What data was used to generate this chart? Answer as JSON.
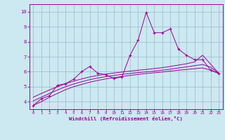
{
  "xlabel": "Windchill (Refroidissement éolien,°C)",
  "bg_color": "#cce8f0",
  "line_color": "#990099",
  "grid_color": "#99bbcc",
  "x_data": [
    0,
    1,
    2,
    3,
    4,
    5,
    6,
    7,
    8,
    9,
    10,
    11,
    12,
    13,
    14,
    15,
    16,
    17,
    18,
    19,
    20,
    21,
    22,
    23
  ],
  "y_main": [
    3.75,
    4.2,
    4.4,
    5.1,
    5.2,
    5.5,
    6.0,
    6.35,
    5.9,
    5.8,
    5.55,
    5.65,
    7.1,
    8.1,
    9.95,
    8.6,
    8.6,
    8.85,
    7.5,
    7.1,
    6.8,
    6.8,
    6.1,
    5.9
  ],
  "ylim": [
    3.5,
    10.5
  ],
  "xlim": [
    -0.5,
    23.5
  ],
  "yticks": [
    4,
    5,
    6,
    7,
    8,
    9,
    10
  ],
  "xticks": [
    0,
    1,
    2,
    3,
    4,
    5,
    6,
    7,
    8,
    9,
    10,
    11,
    12,
    13,
    14,
    15,
    16,
    17,
    18,
    19,
    20,
    21,
    22,
    23
  ],
  "reg_line1": [
    3.75,
    4.0,
    4.3,
    4.55,
    4.8,
    5.0,
    5.15,
    5.3,
    5.42,
    5.52,
    5.6,
    5.68,
    5.75,
    5.82,
    5.88,
    5.93,
    5.98,
    6.04,
    6.1,
    6.15,
    6.2,
    6.25,
    6.1,
    5.88
  ],
  "reg_line2": [
    4.05,
    4.3,
    4.55,
    4.78,
    5.0,
    5.18,
    5.33,
    5.47,
    5.58,
    5.67,
    5.75,
    5.82,
    5.88,
    5.94,
    5.99,
    6.04,
    6.1,
    6.17,
    6.25,
    6.32,
    6.4,
    6.48,
    6.3,
    5.9
  ],
  "reg_line3": [
    4.3,
    4.55,
    4.78,
    5.0,
    5.2,
    5.37,
    5.52,
    5.65,
    5.75,
    5.84,
    5.91,
    5.98,
    6.04,
    6.1,
    6.15,
    6.21,
    6.27,
    6.35,
    6.44,
    6.53,
    6.65,
    7.1,
    6.5,
    5.9
  ]
}
